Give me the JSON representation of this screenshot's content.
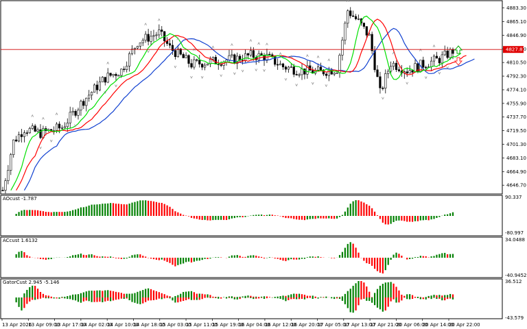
{
  "chart_data": {
    "type": "candlestick",
    "symbol_price": {
      "y_ticks": [
        "4883.30",
        "4865.10",
        "4846.90",
        "4828.70",
        "4810.50",
        "4792.30",
        "4774.10",
        "4755.90",
        "4737.70",
        "4719.50",
        "4701.30",
        "4683.10",
        "4664.90",
        "4646.70"
      ],
      "current_price_label": "4827.87",
      "ylim": [
        4635,
        4893
      ]
    },
    "x_labels": [
      "13 Apr 2026",
      "13 Apr 09:00",
      "13 Apr 17:00",
      "14 Apr 02:00",
      "14 Apr 10:00",
      "14 Apr 18:00",
      "15 Apr 03:00",
      "15 Apr 11:00",
      "15 Apr 19:00",
      "16 Apr 04:00",
      "16 Apr 12:00",
      "16 Apr 20:00",
      "17 Apr 05:00",
      "17 Apr 13:00",
      "17 Apr 21:00",
      "20 Apr 06:00",
      "20 Apr 14:00",
      "20 Apr 22:00"
    ],
    "indicators": [
      {
        "name": "AOcust",
        "value": "-1.787",
        "scale_max": "90.337",
        "scale_min": "-80.997"
      },
      {
        "name": "ACcust",
        "value": "1.6132",
        "scale_max": "34.0488",
        "scale_min": "-40.9452"
      },
      {
        "name": "GatorCust",
        "value": "2.945 -5.146",
        "scale_max": "36.512",
        "scale_min": "-43.579"
      }
    ],
    "colors": {
      "up": "#008000",
      "down": "#ff0000",
      "blue": "#1040d0",
      "green_line": "#00e000",
      "red_line": "#ff0000",
      "price_line": "#d00000"
    }
  }
}
